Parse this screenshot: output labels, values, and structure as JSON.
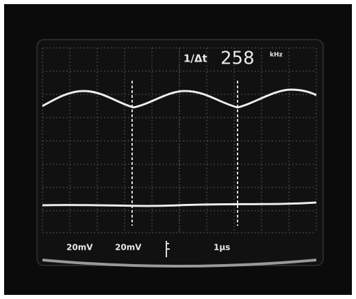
{
  "readout": {
    "label": "1/Δt",
    "value": 258,
    "unit": "kHz"
  },
  "channels": [
    {
      "scale": "20mV"
    },
    {
      "scale": "20mV"
    }
  ],
  "timebase": "1µs"
}
